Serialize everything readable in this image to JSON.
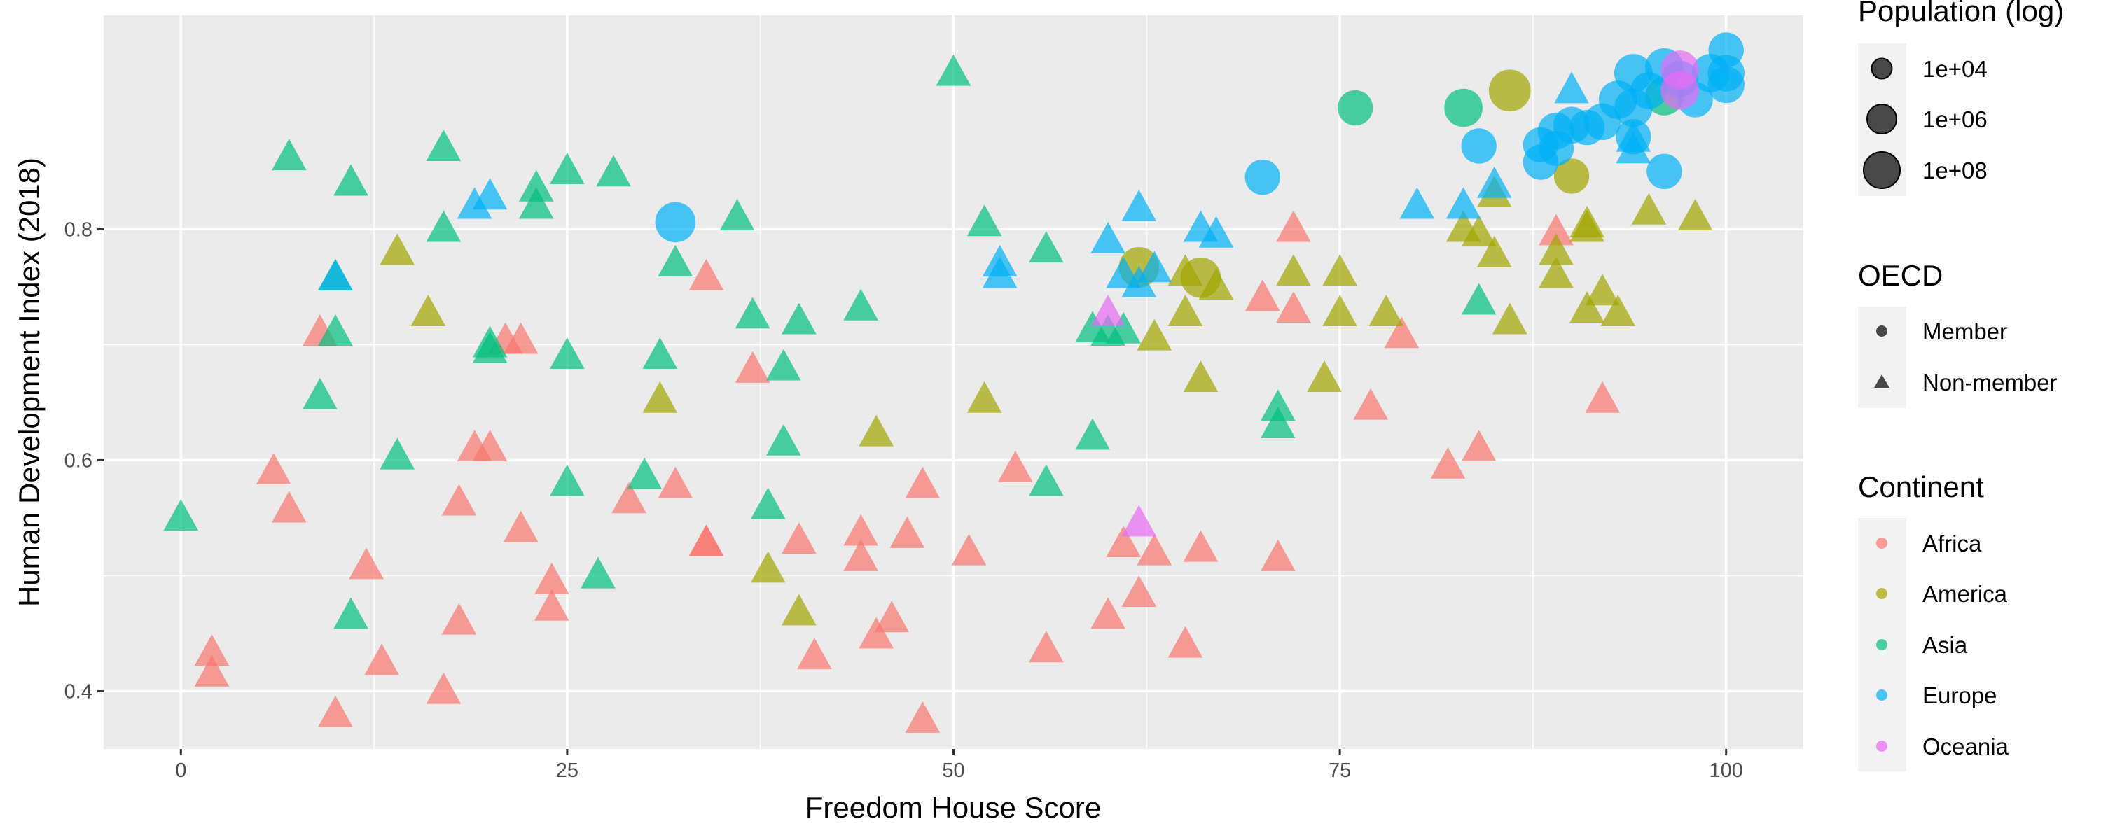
{
  "chart_data": {
    "type": "scatter",
    "title": "",
    "xlabel": "Freedom House Score",
    "ylabel": "Human Development Index (2018)",
    "xlim": [
      -5,
      105
    ],
    "ylim": [
      0.35,
      0.985
    ],
    "x_ticks": [
      0,
      25,
      50,
      75,
      100
    ],
    "y_ticks": [
      0.4,
      0.6,
      0.8
    ],
    "grid": true,
    "legend_position": "right",
    "colors": {
      "Africa": "#F8766D",
      "America": "#A3A500",
      "Asia": "#00BF7D",
      "Europe": "#00B0F6",
      "Oceania": "#E76BF3"
    },
    "legends": {
      "size": {
        "title": "Population (log)",
        "items": [
          {
            "label": "1e+04",
            "value": 10000
          },
          {
            "label": "1e+06",
            "value": 1000000
          },
          {
            "label": "1e+08",
            "value": 100000000
          }
        ]
      },
      "shape": {
        "title": "OECD",
        "items": [
          {
            "label": "Member",
            "shape": "circle"
          },
          {
            "label": "Non-member",
            "shape": "triangle"
          }
        ]
      },
      "color": {
        "title": "Continent",
        "items": [
          "Africa",
          "America",
          "Asia",
          "Europe",
          "Oceania"
        ]
      }
    },
    "series": [
      {
        "name": "Africa",
        "points": [
          [
            2,
            0.433,
            "n",
            6
          ],
          [
            2,
            0.415,
            "n",
            6
          ],
          [
            6,
            0.59,
            "n",
            6
          ],
          [
            7,
            0.557,
            "n",
            6
          ],
          [
            9,
            0.71,
            "n",
            6
          ],
          [
            10,
            0.38,
            "n",
            6
          ],
          [
            12,
            0.508,
            "n",
            6
          ],
          [
            13,
            0.425,
            "n",
            6
          ],
          [
            17,
            0.4,
            "n",
            6
          ],
          [
            18,
            0.563,
            "n",
            6
          ],
          [
            18,
            0.46,
            "n",
            6
          ],
          [
            19,
            0.61,
            "n",
            6
          ],
          [
            20,
            0.61,
            "n",
            6
          ],
          [
            21,
            0.703,
            "n",
            6
          ],
          [
            22,
            0.703,
            "n",
            6
          ],
          [
            22,
            0.54,
            "n",
            6
          ],
          [
            24,
            0.495,
            "n",
            6
          ],
          [
            24,
            0.472,
            "n",
            6
          ],
          [
            29,
            0.565,
            "n",
            6
          ],
          [
            32,
            0.578,
            "n",
            6
          ],
          [
            34,
            0.528,
            "n",
            6
          ],
          [
            34,
            0.528,
            "n",
            6
          ],
          [
            34,
            0.758,
            "n",
            6
          ],
          [
            37,
            0.678,
            "n",
            6
          ],
          [
            40,
            0.53,
            "n",
            6
          ],
          [
            41,
            0.43,
            "n",
            6
          ],
          [
            44,
            0.537,
            "n",
            6
          ],
          [
            44,
            0.515,
            "n",
            6
          ],
          [
            45,
            0.448,
            "n",
            6
          ],
          [
            46,
            0.462,
            "n",
            6
          ],
          [
            47,
            0.535,
            "n",
            6
          ],
          [
            48,
            0.578,
            "n",
            6
          ],
          [
            48,
            0.375,
            "n",
            6
          ],
          [
            51,
            0.52,
            "n",
            6
          ],
          [
            54,
            0.592,
            "n",
            6
          ],
          [
            56,
            0.436,
            "n",
            6
          ],
          [
            60,
            0.465,
            "n",
            6
          ],
          [
            61,
            0.527,
            "n",
            6
          ],
          [
            62,
            0.484,
            "n",
            6
          ],
          [
            63,
            0.52,
            "n",
            6
          ],
          [
            65,
            0.44,
            "n",
            6
          ],
          [
            66,
            0.523,
            "n",
            6
          ],
          [
            70,
            0.74,
            "n",
            6
          ],
          [
            71,
            0.515,
            "n",
            6
          ],
          [
            72,
            0.73,
            "n",
            6
          ],
          [
            72,
            0.8,
            "n",
            6
          ],
          [
            77,
            0.646,
            "n",
            6
          ],
          [
            79,
            0.708,
            "n",
            6
          ],
          [
            82,
            0.595,
            "n",
            6
          ],
          [
            84,
            0.61,
            "n",
            6
          ],
          [
            89,
            0.797,
            "n",
            6
          ],
          [
            92,
            0.652,
            "n",
            6
          ]
        ]
      },
      {
        "name": "America",
        "points": [
          [
            14,
            0.78,
            "n",
            6
          ],
          [
            16,
            0.727,
            "n",
            6
          ],
          [
            31,
            0.652,
            "n",
            6
          ],
          [
            38,
            0.505,
            "n",
            6
          ],
          [
            40,
            0.468,
            "n",
            6
          ],
          [
            45,
            0.623,
            "n",
            6
          ],
          [
            52,
            0.652,
            "n",
            6
          ],
          [
            62,
            0.767,
            "m",
            8
          ],
          [
            63,
            0.706,
            "n",
            6
          ],
          [
            65,
            0.727,
            "n",
            6
          ],
          [
            65,
            0.762,
            "n",
            6
          ],
          [
            66,
            0.758,
            "m",
            8
          ],
          [
            66,
            0.67,
            "n",
            6
          ],
          [
            67,
            0.75,
            "n",
            6
          ],
          [
            72,
            0.762,
            "n",
            6
          ],
          [
            74,
            0.67,
            "n",
            6
          ],
          [
            75,
            0.727,
            "n",
            6
          ],
          [
            75,
            0.762,
            "n",
            6
          ],
          [
            78,
            0.727,
            "n",
            6
          ],
          [
            83,
            0.8,
            "n",
            6
          ],
          [
            84,
            0.796,
            "n",
            6
          ],
          [
            85,
            0.83,
            "n",
            6
          ],
          [
            85,
            0.778,
            "n",
            6
          ],
          [
            86,
            0.72,
            "n",
            6
          ],
          [
            86,
            0.92,
            "m",
            8.3
          ],
          [
            89,
            0.78,
            "n",
            6
          ],
          [
            89,
            0.76,
            "n",
            6
          ],
          [
            90,
            0.846,
            "m",
            7
          ],
          [
            91,
            0.8,
            "n",
            6
          ],
          [
            91,
            0.804,
            "n",
            6
          ],
          [
            91,
            0.73,
            "n",
            6
          ],
          [
            92,
            0.745,
            "n",
            6
          ],
          [
            93,
            0.727,
            "n",
            6
          ],
          [
            95,
            0.815,
            "n",
            6
          ],
          [
            98,
            0.81,
            "n",
            6
          ]
        ]
      },
      {
        "name": "Asia",
        "points": [
          [
            0,
            0.55,
            "n",
            6
          ],
          [
            7,
            0.862,
            "n",
            6
          ],
          [
            9,
            0.655,
            "n",
            6
          ],
          [
            10,
            0.71,
            "n",
            6
          ],
          [
            10,
            0.758,
            "n",
            6
          ],
          [
            11,
            0.84,
            "n",
            6
          ],
          [
            11,
            0.465,
            "n",
            6
          ],
          [
            14,
            0.603,
            "n",
            6
          ],
          [
            17,
            0.87,
            "n",
            6
          ],
          [
            17,
            0.8,
            "n",
            6
          ],
          [
            20,
            0.695,
            "n",
            6
          ],
          [
            20,
            0.7,
            "n",
            6
          ],
          [
            23,
            0.835,
            "n",
            6
          ],
          [
            23,
            0.82,
            "n",
            6
          ],
          [
            25,
            0.85,
            "n",
            6
          ],
          [
            25,
            0.69,
            "n",
            6
          ],
          [
            25,
            0.58,
            "n",
            6
          ],
          [
            27,
            0.5,
            "n",
            6
          ],
          [
            28,
            0.848,
            "n",
            6
          ],
          [
            30,
            0.586,
            "n",
            6
          ],
          [
            31,
            0.69,
            "n",
            6
          ],
          [
            32,
            0.77,
            "n",
            6
          ],
          [
            36,
            0.81,
            "n",
            6
          ],
          [
            37,
            0.725,
            "n",
            6
          ],
          [
            38,
            0.56,
            "n",
            6
          ],
          [
            39,
            0.68,
            "n",
            6
          ],
          [
            39,
            0.615,
            "n",
            6
          ],
          [
            40,
            0.72,
            "n",
            6
          ],
          [
            44,
            0.732,
            "n",
            6
          ],
          [
            50,
            0.935,
            "n",
            6
          ],
          [
            52,
            0.805,
            "n",
            6
          ],
          [
            56,
            0.782,
            "n",
            6
          ],
          [
            56,
            0.58,
            "n",
            6
          ],
          [
            59,
            0.62,
            "n",
            6
          ],
          [
            59,
            0.713,
            "n",
            6
          ],
          [
            60,
            0.71,
            "n",
            6
          ],
          [
            61,
            0.712,
            "n",
            6
          ],
          [
            71,
            0.645,
            "n",
            6
          ],
          [
            71,
            0.63,
            "n",
            6
          ],
          [
            76,
            0.905,
            "m",
            7
          ],
          [
            83,
            0.905,
            "m",
            7.6
          ],
          [
            84,
            0.737,
            "n",
            6
          ],
          [
            96,
            0.915,
            "m",
            7.6
          ]
        ]
      },
      {
        "name": "Europe",
        "points": [
          [
            10,
            0.758,
            "n",
            6
          ],
          [
            19,
            0.82,
            "n",
            6
          ],
          [
            20,
            0.828,
            "n",
            6
          ],
          [
            32,
            0.806,
            "m",
            8
          ],
          [
            53,
            0.77,
            "n",
            6
          ],
          [
            53,
            0.76,
            "n",
            6
          ],
          [
            60,
            0.79,
            "n",
            6
          ],
          [
            61,
            0.76,
            "n",
            6
          ],
          [
            62,
            0.818,
            "n",
            6
          ],
          [
            62,
            0.752,
            "n",
            6
          ],
          [
            63,
            0.765,
            "n",
            6
          ],
          [
            66,
            0.8,
            "n",
            6
          ],
          [
            67,
            0.795,
            "n",
            6
          ],
          [
            70,
            0.845,
            "m",
            7
          ],
          [
            80,
            0.82,
            "n",
            6
          ],
          [
            83,
            0.82,
            "n",
            6
          ],
          [
            84,
            0.872,
            "m",
            7
          ],
          [
            85,
            0.838,
            "n",
            6
          ],
          [
            88,
            0.858,
            "m",
            7
          ],
          [
            88,
            0.873,
            "m",
            7
          ],
          [
            89,
            0.87,
            "m",
            7
          ],
          [
            89,
            0.885,
            "m",
            7.3
          ],
          [
            90,
            0.89,
            "m",
            7.3
          ],
          [
            90,
            0.92,
            "n",
            6
          ],
          [
            91,
            0.888,
            "m",
            7
          ],
          [
            92,
            0.893,
            "m",
            7.3
          ],
          [
            93,
            0.912,
            "m",
            7.6
          ],
          [
            94,
            0.935,
            "m",
            7.6
          ],
          [
            94,
            0.905,
            "m",
            7.6
          ],
          [
            94,
            0.88,
            "m",
            7
          ],
          [
            94,
            0.868,
            "n",
            6
          ],
          [
            94,
            0.878,
            "n",
            6
          ],
          [
            95,
            0.92,
            "m",
            7.3
          ],
          [
            96,
            0.94,
            "m",
            7.6
          ],
          [
            96,
            0.85,
            "m",
            7
          ],
          [
            97,
            0.93,
            "m",
            7.3
          ],
          [
            98,
            0.912,
            "m",
            7
          ],
          [
            99,
            0.935,
            "m",
            7.6
          ],
          [
            100,
            0.955,
            "m",
            7
          ],
          [
            100,
            0.935,
            "m",
            7.3
          ],
          [
            100,
            0.925,
            "m",
            7.3
          ]
        ]
      },
      {
        "name": "Oceania",
        "points": [
          [
            60,
            0.727,
            "n",
            6
          ],
          [
            62,
            0.545,
            "n",
            6
          ],
          [
            97,
            0.92,
            "m",
            7.6
          ],
          [
            97,
            0.938,
            "m",
            7.6
          ]
        ]
      }
    ]
  }
}
